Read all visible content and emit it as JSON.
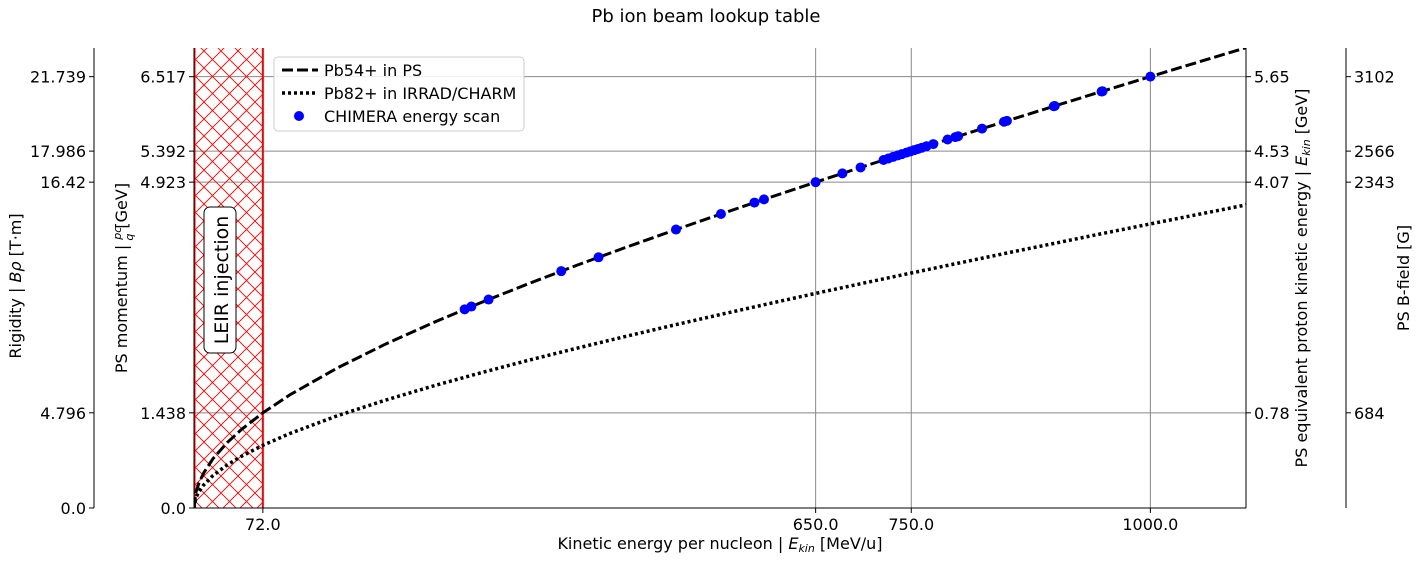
{
  "chart_data": {
    "type": "line",
    "title": "Pb ion beam lookup table",
    "xlabel": "Kinetic energy per nucleon | E_kin [MeV/u]",
    "xlabel_main": "Kinetic energy per nucleon | ",
    "xlabel_sym": "E",
    "xlabel_sub": "kin",
    "xlabel_unit": " [MeV/u]",
    "xlim": [
      0,
      1100
    ],
    "x_ticks": [
      72.0,
      650.0,
      750.0,
      1000.0
    ],
    "x_tick_labels": [
      "72.0",
      "650.0",
      "750.0",
      "1000.0"
    ],
    "ylim": [
      0,
      6.95
    ],
    "y_momentum_ticks": [
      0.0,
      1.438,
      4.923,
      5.392,
      6.517
    ],
    "y_momentum_labels": [
      "0.0",
      "1.438",
      "4.923",
      "5.392",
      "6.517"
    ],
    "y_momentum_label": "PS momentum | pc/q [GeV]",
    "y_momentum_label_main": "PS momentum | ",
    "y_momentum_label_num": "pc",
    "y_momentum_label_den": "q",
    "y_momentum_label_unit": " [GeV]",
    "y_rigidity_ticks": [
      0.0,
      1.438,
      4.923,
      5.392,
      6.517
    ],
    "y_rigidity_labels": [
      "0.0",
      "4.796",
      "16.42",
      "17.986",
      "21.739"
    ],
    "y_rigidity_label": "Rigidity | Bρ [T·m]",
    "y_rigidity_label_main": "Rigidity | ",
    "y_rigidity_label_sym": "Bρ",
    "y_rigidity_label_unit": " [T·m]",
    "y_proton_ticks": [
      1.438,
      4.923,
      5.392,
      6.517
    ],
    "y_proton_labels": [
      "0.78",
      "4.07",
      "4.53",
      "5.65"
    ],
    "y_proton_label": "PS equivalent proton kinetic energy | E_kin [GeV]",
    "y_proton_label_main": "PS equivalent proton kinetic energy | ",
    "y_proton_label_sym": "E",
    "y_proton_label_sub": "kin",
    "y_proton_label_unit": " [GeV]",
    "y_bfield_ticks": [
      1.438,
      4.923,
      5.392,
      6.517
    ],
    "y_bfield_labels": [
      "684",
      "2343",
      "2566",
      "3102"
    ],
    "y_bfield_label": "PS B-field [G]",
    "injection_region": {
      "x_start": 0,
      "x_end": 72.0,
      "label": "LEIR injection",
      "color": "#ff0000"
    },
    "series": [
      {
        "name": "Pb54+ in PS",
        "style": "dashed",
        "color": "#000000",
        "charge": 54,
        "x": [
          0,
          2,
          5,
          10,
          20,
          35,
          50,
          72,
          100,
          150,
          200,
          250,
          300,
          350,
          400,
          450,
          500,
          550,
          600,
          650,
          700,
          750,
          800,
          850,
          900,
          950,
          1000,
          1050,
          1100
        ]
      },
      {
        "name": "Pb82+ in IRRAD/CHARM",
        "style": "dotted",
        "color": "#000000",
        "charge": 82,
        "x": [
          0,
          2,
          5,
          10,
          20,
          35,
          50,
          72,
          100,
          150,
          200,
          250,
          300,
          350,
          400,
          450,
          500,
          550,
          600,
          650,
          700,
          750,
          800,
          850,
          900,
          950,
          1000,
          1050,
          1100
        ]
      },
      {
        "name": "CHIMERA energy scan",
        "style": "scatter",
        "color": "#0000ff",
        "charge": 54,
        "x": [
          283,
          290,
          308,
          384,
          423,
          504,
          551,
          586,
          596,
          650,
          678,
          697,
          721,
          726,
          731,
          736,
          740,
          745,
          749,
          753,
          757,
          761,
          766,
          773,
          788,
          796,
          799,
          824,
          847,
          850,
          899,
          900,
          949,
          950,
          1000
        ]
      }
    ],
    "legend": {
      "position": "top-left"
    },
    "grid": true
  }
}
